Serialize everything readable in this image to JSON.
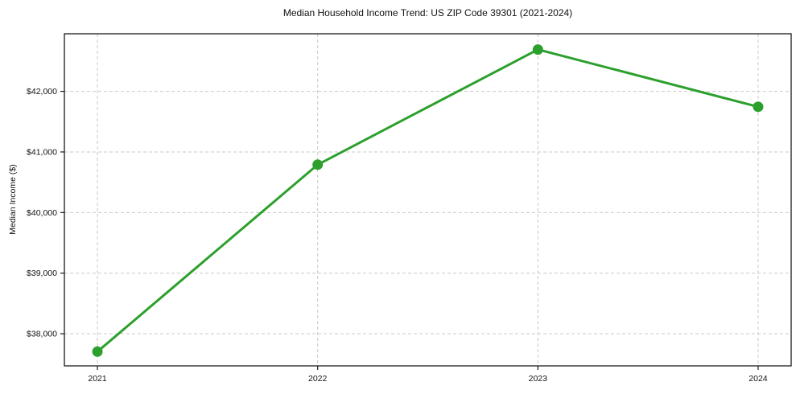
{
  "chart_data": {
    "type": "line",
    "title": "Median Household Income Trend: US ZIP Code 39301 (2021-2024)",
    "xlabel": "",
    "ylabel": "Median Income ($)",
    "categories": [
      "2021",
      "2022",
      "2023",
      "2024"
    ],
    "series": [
      {
        "name": "Median Household Income",
        "values": [
          37705,
          40790,
          42690,
          41745
        ]
      }
    ],
    "x_numeric": [
      2021,
      2022,
      2023,
      2024
    ],
    "yticks": [
      38000,
      39000,
      40000,
      41000,
      42000
    ],
    "ytick_labels": [
      "$38,000",
      "$39,000",
      "$40,000",
      "$41,000",
      "$42,000"
    ],
    "ylim": [
      37470,
      42950
    ],
    "xlim": [
      2020.85,
      2024.15
    ],
    "grid": true,
    "grid_style": "dashed",
    "legend_position": "none",
    "colors": {
      "line": "#2ca02c",
      "marker": "#2ca02c",
      "grid": "#c9c9c9",
      "spine": "#1a1a1a",
      "background": "#ffffff"
    },
    "marker": "circle"
  }
}
